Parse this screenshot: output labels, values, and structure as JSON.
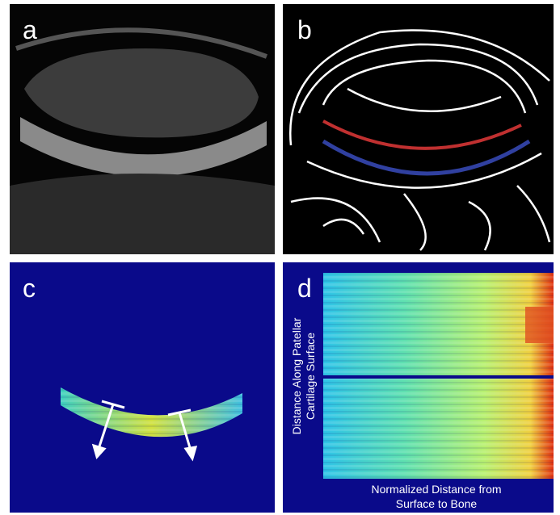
{
  "panels": [
    {
      "label": "a"
    },
    {
      "label": "b"
    },
    {
      "label": "c"
    },
    {
      "label": "d",
      "y_axis_label": [
        "Distance Along Patellar",
        "Cartilage Surface"
      ],
      "x_axis_label": [
        "Normalized Distance from",
        "Surface to Bone"
      ]
    }
  ]
}
